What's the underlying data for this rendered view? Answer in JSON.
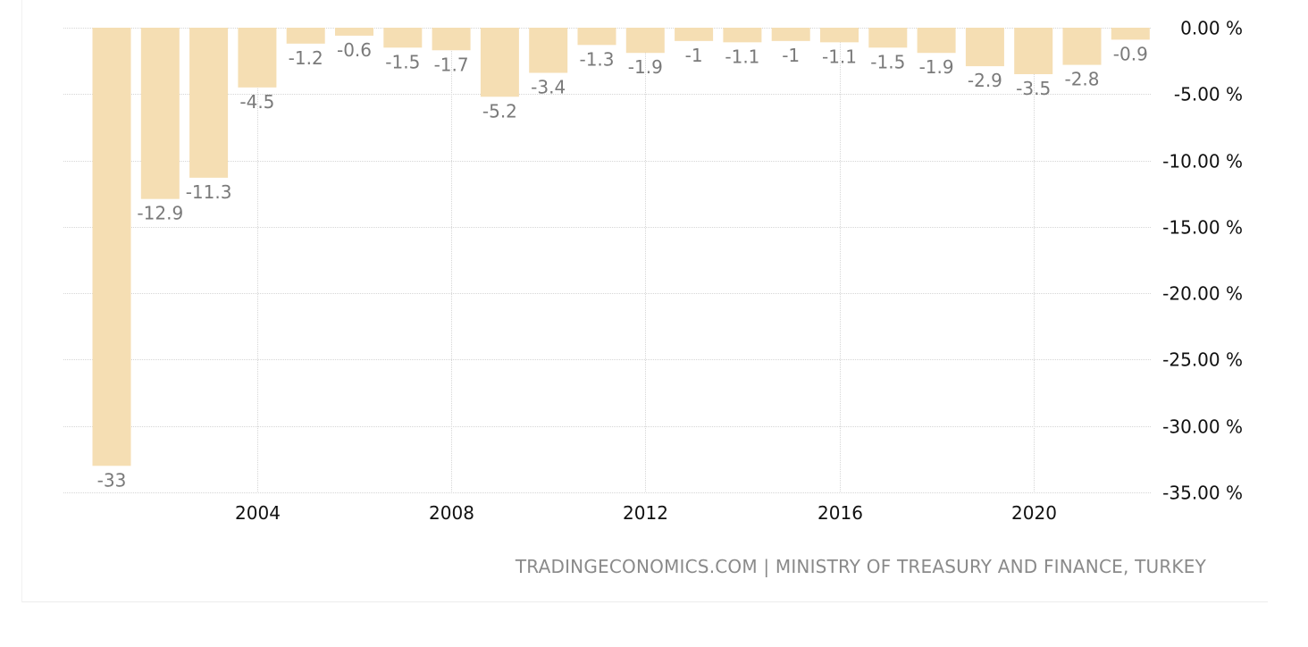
{
  "chart_data": {
    "type": "bar",
    "x": [
      2001,
      2002,
      2003,
      2004,
      2005,
      2006,
      2007,
      2008,
      2009,
      2010,
      2011,
      2012,
      2013,
      2014,
      2015,
      2016,
      2017,
      2018,
      2019,
      2020,
      2021,
      2022
    ],
    "values": [
      -33,
      -12.9,
      -11.3,
      -4.5,
      -1.2,
      -0.6,
      -1.5,
      -1.7,
      -5.2,
      -3.4,
      -1.3,
      -1.9,
      -1,
      -1.1,
      -1,
      -1.1,
      -1.5,
      -1.9,
      -2.9,
      -3.5,
      -2.8,
      -0.9
    ],
    "data_labels": [
      "-33",
      "-12.9",
      "-11.3",
      "-4.5",
      "-1.2",
      "-0.6",
      "-1.5",
      "-1.7",
      "-5.2",
      "-3.4",
      "-1.3",
      "-1.9",
      "-1",
      "-1.1",
      "-1",
      "-1.1",
      "-1.5",
      "-1.9",
      "-2.9",
      "-3.5",
      "-2.8",
      "-0.9"
    ],
    "x_ticks": [
      "2004",
      "2008",
      "2012",
      "2016",
      "2020"
    ],
    "x_tick_values": [
      2004,
      2008,
      2012,
      2016,
      2020
    ],
    "y_ticks": [
      "0.00 %",
      "-5.00 %",
      "-10.00 %",
      "-15.00 %",
      "-20.00 %",
      "-25.00 %",
      "-30.00 %",
      "-35.00 %"
    ],
    "y_tick_values": [
      0,
      -5,
      -10,
      -15,
      -20,
      -25,
      -30,
      -35
    ],
    "ylim": [
      -35,
      0
    ],
    "y_axis_side": "right",
    "grid": true,
    "bar_color": "#f5deb3",
    "label_color": "#7a7a7a"
  },
  "source": "TRADINGECONOMICS.COM | MINISTRY OF TREASURY AND FINANCE, TURKEY"
}
